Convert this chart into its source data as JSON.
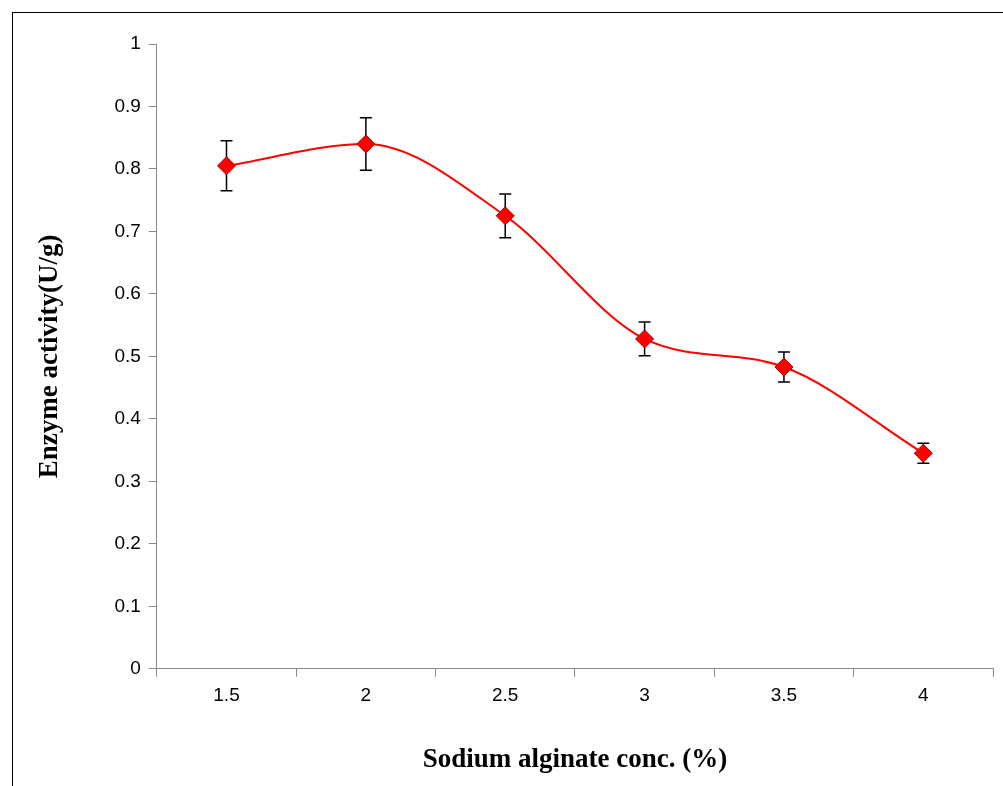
{
  "chart_data": {
    "type": "line",
    "xlabel": "Sodium alginate conc. (%)",
    "ylabel": "Enzyme activity(U/g)",
    "categories": [
      "1.5",
      "2",
      "2.5",
      "3",
      "3.5",
      "4"
    ],
    "series": [
      {
        "color": "#ff0000",
        "values": [
          0.805,
          0.84,
          0.725,
          0.528,
          0.483,
          0.345
        ],
        "errors": [
          0.04,
          0.042,
          0.035,
          0.027,
          0.024,
          0.016
        ]
      }
    ],
    "ylim": [
      0,
      1
    ],
    "yticks": [
      0,
      0.1,
      0.2,
      0.3,
      0.4,
      0.5,
      0.6,
      0.7,
      0.8,
      0.9,
      1
    ],
    "grid": false,
    "legend": false,
    "marker": "diamond",
    "line_style": "solid"
  }
}
